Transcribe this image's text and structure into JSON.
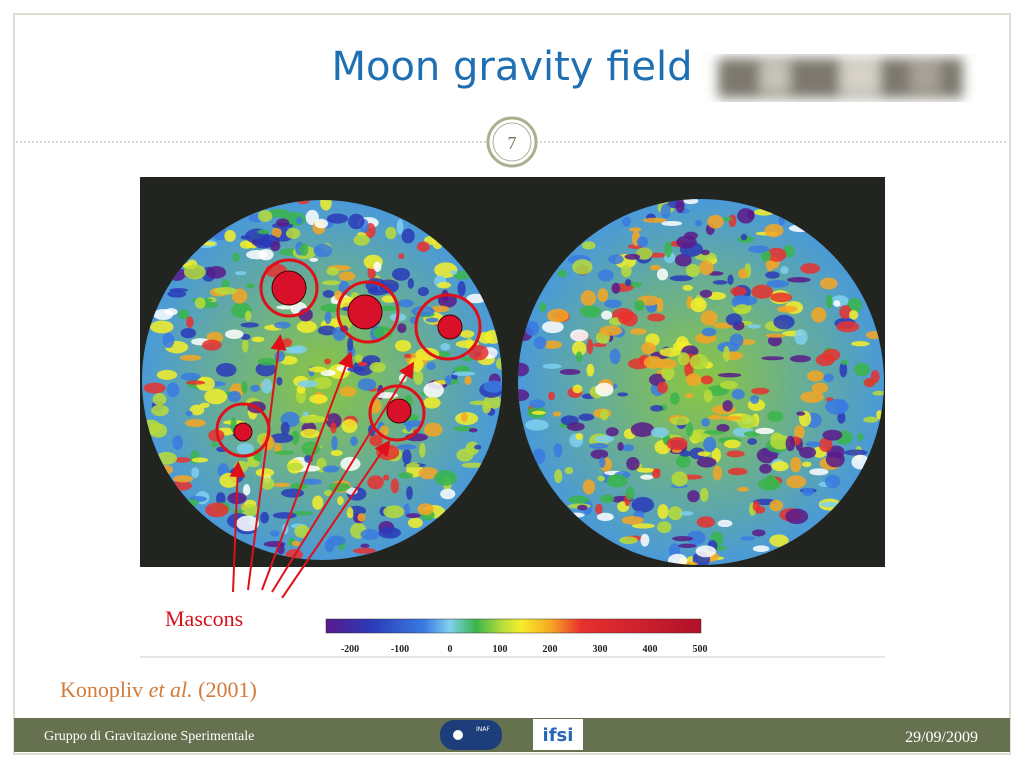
{
  "title": "Moon gravity field",
  "slide_number": "7",
  "figure": {
    "annotation": "Mascons",
    "colorbar_labels": [
      "-200",
      "-100",
      "0",
      "100",
      "200",
      "300",
      "400",
      "500"
    ]
  },
  "citation": {
    "authors": "Konopliv",
    "etal": "et al.",
    "year": "(2001)"
  },
  "footer": {
    "group": "Gruppo di Gravitazione Sperimentale",
    "inaf": "INAF",
    "ifsi": "ifsi",
    "date": "29/09/2009"
  }
}
